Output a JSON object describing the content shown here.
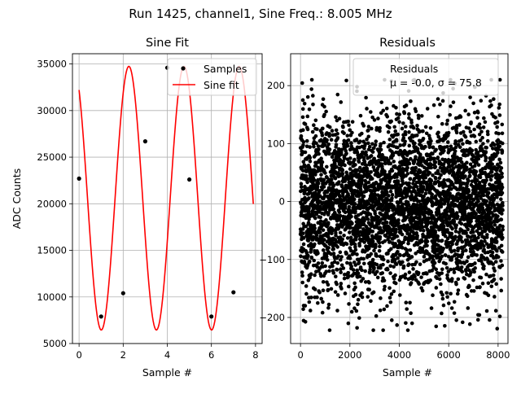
{
  "suptitle": "Run 1425, channel1, Sine Freq.: 8.005 MHz",
  "chart_data": [
    {
      "type": "line",
      "title": "Sine Fit",
      "xlabel": "Sample #",
      "ylabel": "ADC Counts",
      "xlim": [
        -0.3,
        8.3
      ],
      "ylim": [
        5000,
        36100
      ],
      "xticks": [
        0,
        2,
        4,
        6,
        8
      ],
      "yticks": [
        5000,
        10000,
        15000,
        20000,
        25000,
        30000,
        35000
      ],
      "grid": true,
      "legend_position": "top-right",
      "colors": {
        "samples": "#000000",
        "fit": "#ff0000"
      },
      "series": [
        {
          "name": "Samples",
          "kind": "scatter",
          "x": [
            0,
            1,
            2,
            3,
            4,
            5,
            6,
            7
          ],
          "y": [
            22700,
            7900,
            10400,
            26700,
            34600,
            22600,
            7900,
            10500
          ]
        },
        {
          "name": "Sine fit",
          "kind": "line",
          "x_range": [
            0,
            7.9
          ],
          "amplitude": 14150,
          "offset": 20600,
          "frequency_cycles_per_sample": 0.4,
          "phase_rad": 2.18
        }
      ]
    },
    {
      "type": "scatter",
      "title": "Residuals",
      "xlabel": "Sample #",
      "xlim": [
        -400,
        8400
      ],
      "ylim": [
        -245,
        255
      ],
      "xticks": [
        0,
        2000,
        4000,
        6000,
        8000
      ],
      "yticks": [
        -200,
        -100,
        0,
        100,
        200
      ],
      "grid": true,
      "legend_position": "top-right",
      "colors": {
        "points": "#000000"
      },
      "legend_label": "Residuals",
      "stats_label": "μ = -0.0, σ = 75.8",
      "n_points": 8192,
      "mean": 0.0,
      "sigma": 75.8,
      "y_range_observed": [
        -222,
        210
      ]
    }
  ]
}
